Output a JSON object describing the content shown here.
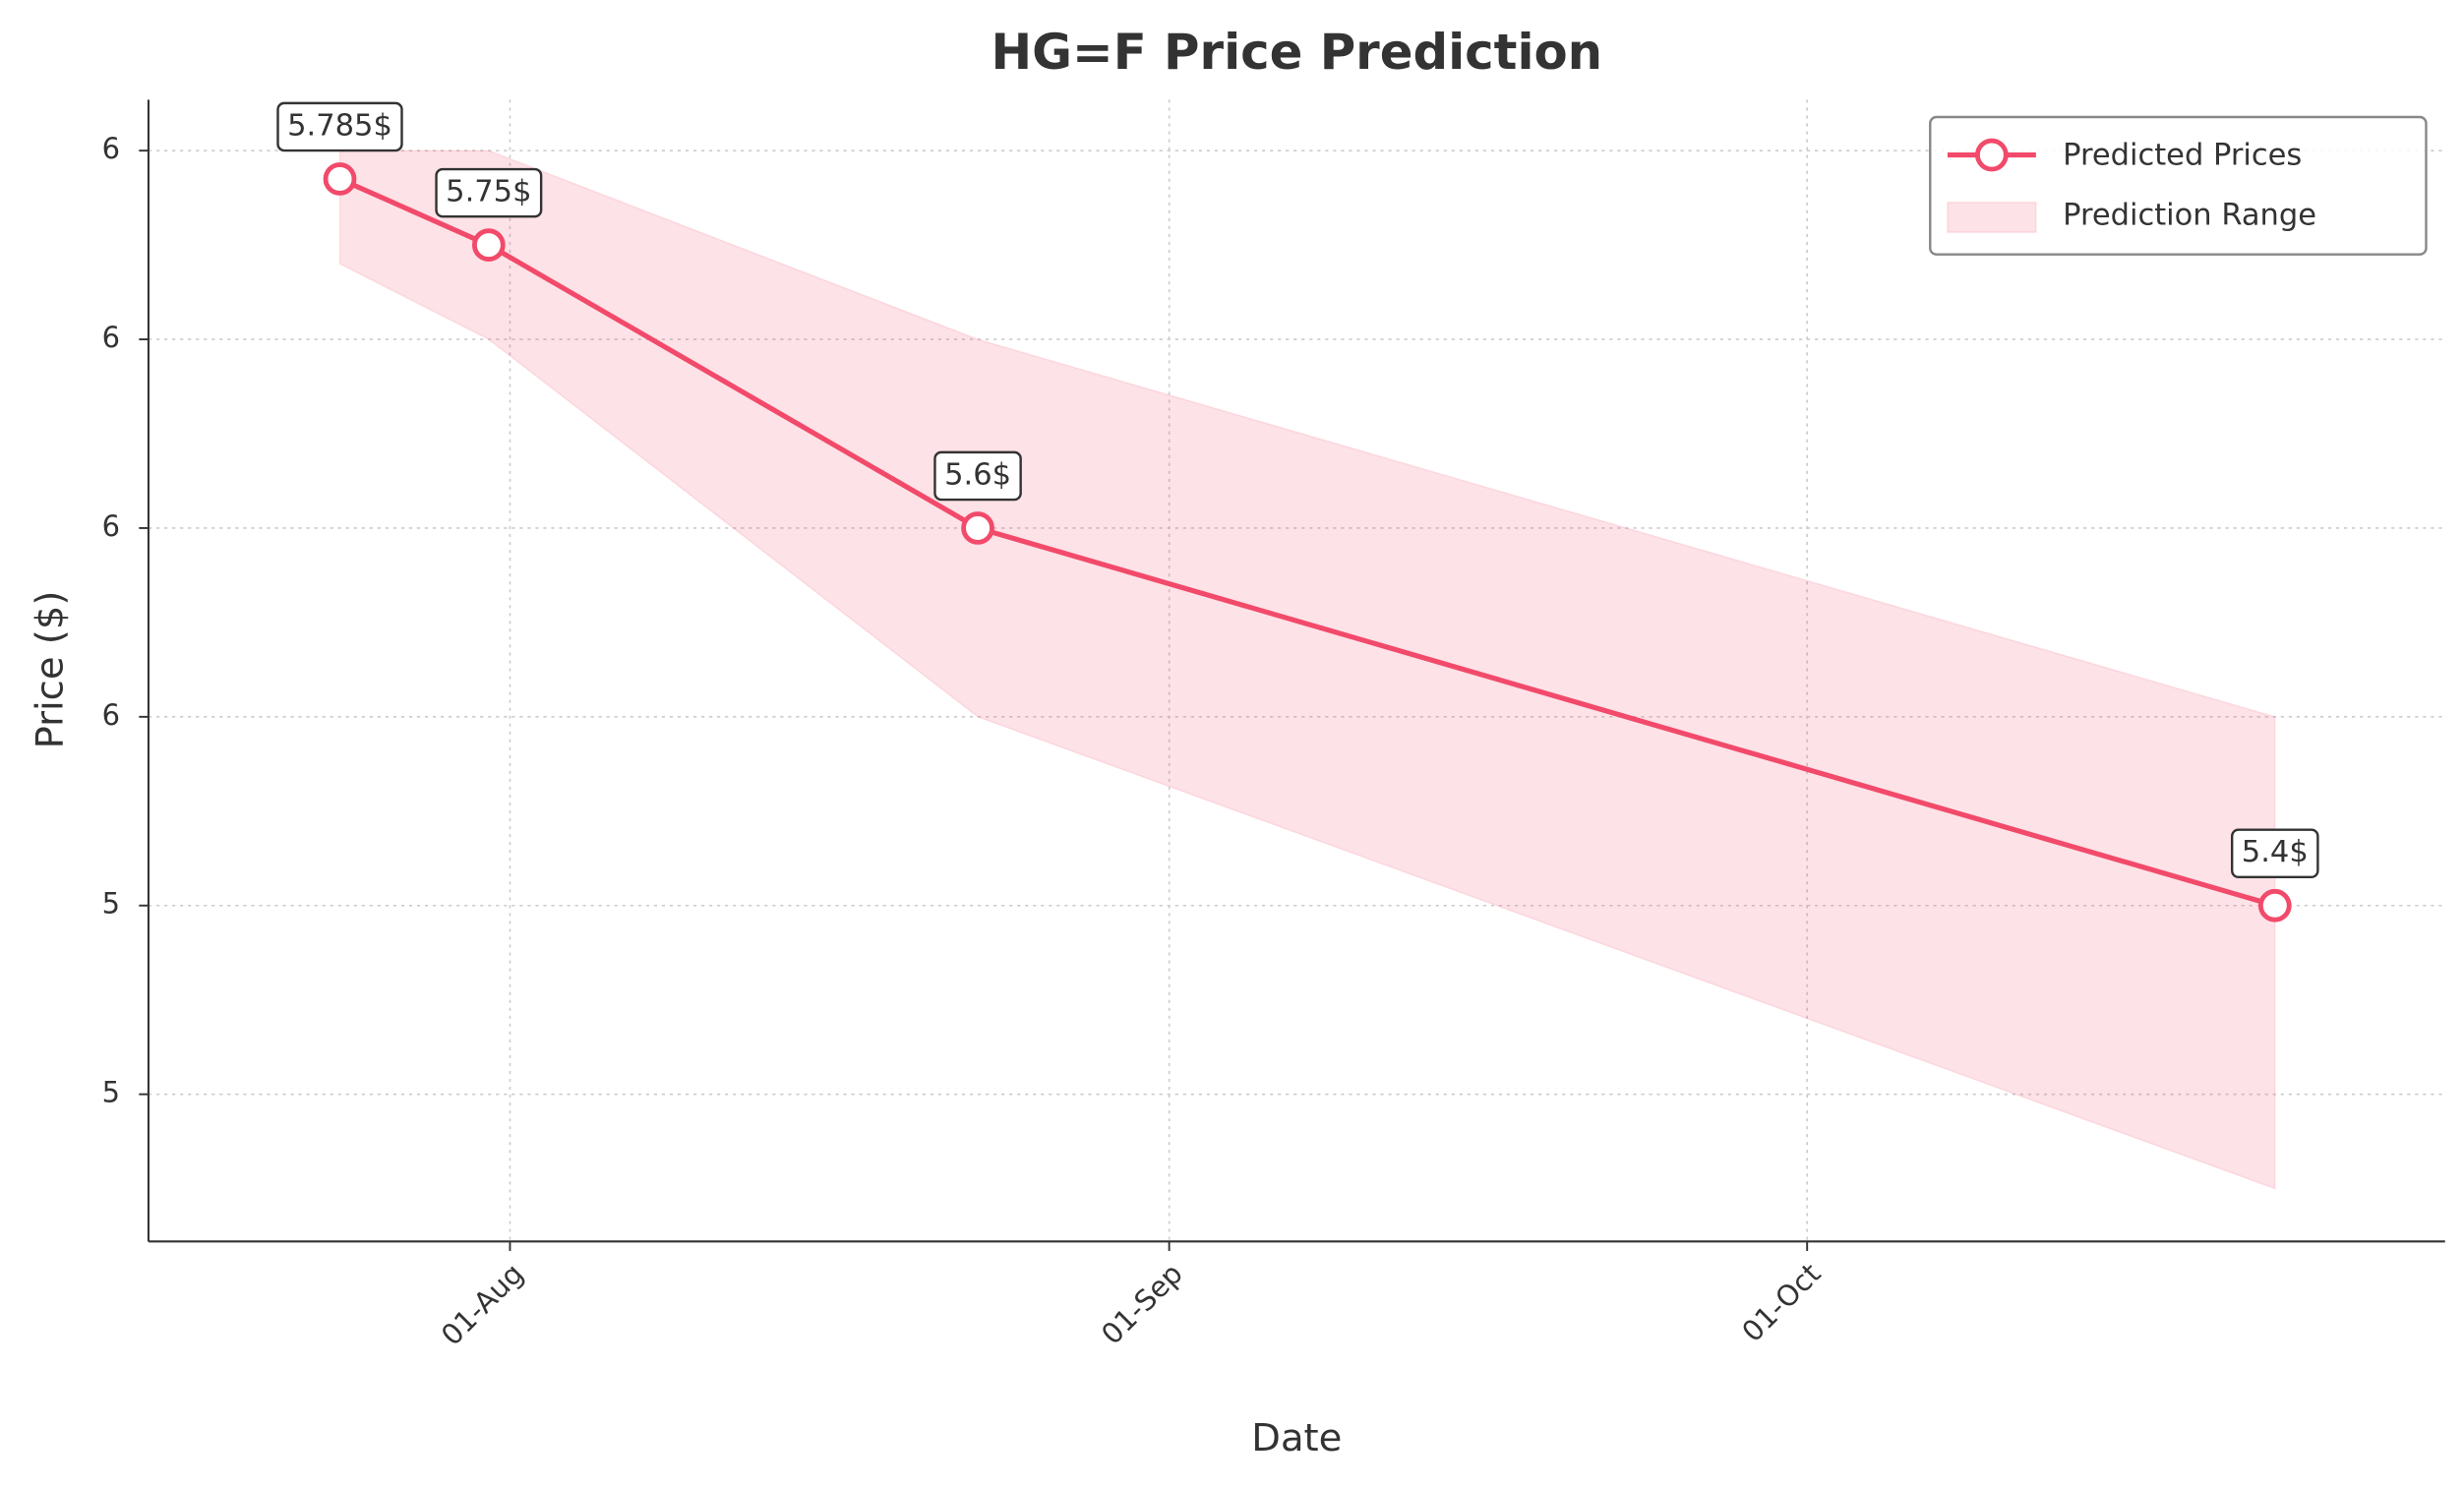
{
  "chart_data": {
    "type": "line",
    "title": "HG=F Price Prediction",
    "x_label": "Date",
    "y_label": "Price ($)",
    "x": [
      "24-Jul",
      "31-Jul",
      "23-Aug",
      "23-Oct"
    ],
    "series": [
      {
        "name": "Predicted Prices",
        "color": "#f24a6a",
        "values": [
          5.785,
          5.75,
          5.6,
          5.4
        ],
        "value_labels": [
          "5.785$",
          "5.75$",
          "5.6$",
          "5.4$"
        ]
      }
    ],
    "range": {
      "name": "Prediction Range",
      "color": "#f24a6a",
      "lower": [
        5.74,
        5.7,
        5.5,
        5.25
      ],
      "upper": [
        5.8,
        5.8,
        5.7,
        5.5
      ]
    },
    "xlim": [
      "15-Jul",
      "31-Oct"
    ],
    "xticks": [
      "01-Aug",
      "01-Sep",
      "01-Oct"
    ],
    "ylim": [
      5.222,
      5.827
    ],
    "yticks": [
      {
        "value": 5.8,
        "label": "6"
      },
      {
        "value": 5.7,
        "label": "6"
      },
      {
        "value": 5.6,
        "label": "6"
      },
      {
        "value": 5.5,
        "label": "6"
      },
      {
        "value": 5.4,
        "label": "5"
      },
      {
        "value": 5.3,
        "label": "5"
      }
    ],
    "grid": true,
    "legend": "upper right"
  }
}
